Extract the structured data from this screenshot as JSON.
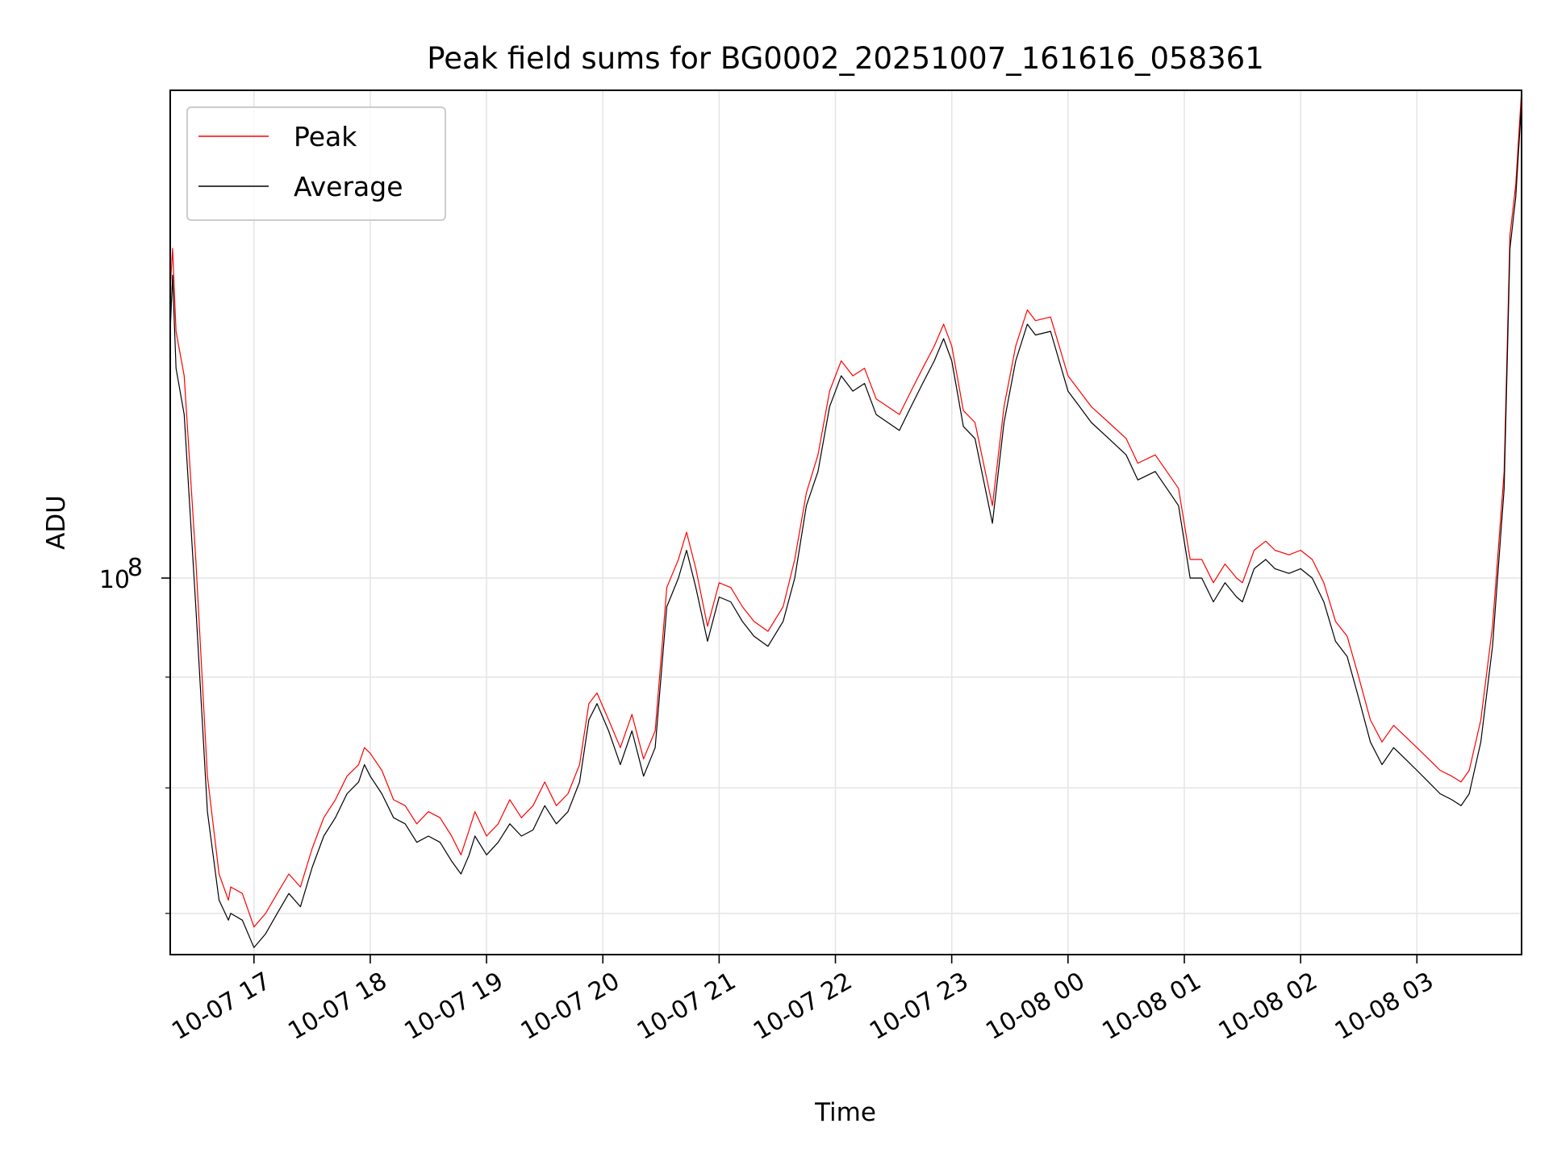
{
  "chart_data": {
    "type": "line",
    "title": "Peak field sums for BG0002_20251007_161616_058361",
    "xlabel": "Time",
    "ylabel": "ADU",
    "yscale": "log",
    "grid": true,
    "legend_position": "top-left",
    "x_unit": "hours since 10-07 16:00",
    "xlim": [
      16.28,
      27.9
    ],
    "ylim": [
      67000000.0,
      168000000.0
    ],
    "x_ticks": [
      {
        "value": 17,
        "label": "10-07 17"
      },
      {
        "value": 18,
        "label": "10-07 18"
      },
      {
        "value": 19,
        "label": "10-07 19"
      },
      {
        "value": 20,
        "label": "10-07 20"
      },
      {
        "value": 21,
        "label": "10-07 21"
      },
      {
        "value": 22,
        "label": "10-07 22"
      },
      {
        "value": 23,
        "label": "10-07 23"
      },
      {
        "value": 24,
        "label": "10-08 00"
      },
      {
        "value": 25,
        "label": "10-08 01"
      },
      {
        "value": 26,
        "label": "10-08 02"
      },
      {
        "value": 27,
        "label": "10-08 03"
      }
    ],
    "y_major_ticks": [
      {
        "value": 100000000,
        "base": "10",
        "exp": "8"
      }
    ],
    "y_minor_ticks": [
      70000000,
      80000000,
      90000000
    ],
    "series": [
      {
        "name": "Peak",
        "color": "#ff0000",
        "stroke_width": 1.2,
        "points": [
          [
            16.28,
            136000000.0
          ],
          [
            16.3,
            142000000.0
          ],
          [
            16.33,
            130000000.0
          ],
          [
            16.4,
            124000000.0
          ],
          [
            16.5,
            102000000.0
          ],
          [
            16.6,
            81000000.0
          ],
          [
            16.7,
            73000000.0
          ],
          [
            16.78,
            71000000.0
          ],
          [
            16.8,
            72000000.0
          ],
          [
            16.9,
            71500000.0
          ],
          [
            17.0,
            69000000.0
          ],
          [
            17.1,
            70000000.0
          ],
          [
            17.2,
            71500000.0
          ],
          [
            17.3,
            73000000.0
          ],
          [
            17.4,
            72000000.0
          ],
          [
            17.5,
            75000000.0
          ],
          [
            17.6,
            77500000.0
          ],
          [
            17.7,
            79000000.0
          ],
          [
            17.8,
            81000000.0
          ],
          [
            17.9,
            82000000.0
          ],
          [
            17.95,
            83500000.0
          ],
          [
            18.0,
            83000000.0
          ],
          [
            18.1,
            81500000.0
          ],
          [
            18.2,
            79000000.0
          ],
          [
            18.3,
            78500000.0
          ],
          [
            18.4,
            77000000.0
          ],
          [
            18.5,
            78000000.0
          ],
          [
            18.6,
            77500000.0
          ],
          [
            18.7,
            76000000.0
          ],
          [
            18.78,
            74500000.0
          ],
          [
            18.85,
            76500000.0
          ],
          [
            18.9,
            78000000.0
          ],
          [
            19.0,
            76000000.0
          ],
          [
            19.1,
            77000000.0
          ],
          [
            19.2,
            79000000.0
          ],
          [
            19.3,
            77500000.0
          ],
          [
            19.4,
            78500000.0
          ],
          [
            19.5,
            80500000.0
          ],
          [
            19.6,
            78500000.0
          ],
          [
            19.7,
            79500000.0
          ],
          [
            19.8,
            82000000.0
          ],
          [
            19.88,
            87500000.0
          ],
          [
            19.95,
            88500000.0
          ],
          [
            20.05,
            86000000.0
          ],
          [
            20.15,
            83500000.0
          ],
          [
            20.25,
            86500000.0
          ],
          [
            20.35,
            82500000.0
          ],
          [
            20.45,
            85000000.0
          ],
          [
            20.55,
            99000000.0
          ],
          [
            20.65,
            102000000.0
          ],
          [
            20.72,
            105000000.0
          ],
          [
            20.8,
            101000000.0
          ],
          [
            20.9,
            95000000.0
          ],
          [
            21.0,
            99500000.0
          ],
          [
            21.1,
            99000000.0
          ],
          [
            21.2,
            97000000.0
          ],
          [
            21.3,
            95500000.0
          ],
          [
            21.42,
            94500000.0
          ],
          [
            21.55,
            97000000.0
          ],
          [
            21.65,
            102000000.0
          ],
          [
            21.75,
            109500000.0
          ],
          [
            21.85,
            114000000.0
          ],
          [
            21.95,
            122000000.0
          ],
          [
            22.05,
            126000000.0
          ],
          [
            22.15,
            124000000.0
          ],
          [
            22.25,
            125000000.0
          ],
          [
            22.35,
            121000000.0
          ],
          [
            22.45,
            120000000.0
          ],
          [
            22.55,
            119000000.0
          ],
          [
            22.65,
            122000000.0
          ],
          [
            22.75,
            125000000.0
          ],
          [
            22.85,
            128000000.0
          ],
          [
            22.93,
            131000000.0
          ],
          [
            23.0,
            128000000.0
          ],
          [
            23.1,
            119500000.0
          ],
          [
            23.2,
            118000000.0
          ],
          [
            23.35,
            108000000.0
          ],
          [
            23.45,
            120000000.0
          ],
          [
            23.55,
            128000000.0
          ],
          [
            23.65,
            133000000.0
          ],
          [
            23.72,
            131500000.0
          ],
          [
            23.85,
            132000000.0
          ],
          [
            24.0,
            124000000.0
          ],
          [
            24.1,
            122000000.0
          ],
          [
            24.2,
            120000000.0
          ],
          [
            24.35,
            118000000.0
          ],
          [
            24.5,
            116000000.0
          ],
          [
            24.6,
            113000000.0
          ],
          [
            24.75,
            114000000.0
          ],
          [
            24.85,
            112000000.0
          ],
          [
            24.95,
            110000000.0
          ],
          [
            25.05,
            102000000.0
          ],
          [
            25.15,
            102000000.0
          ],
          [
            25.25,
            99500000.0
          ],
          [
            25.35,
            101500000.0
          ],
          [
            25.45,
            100000000.0
          ],
          [
            25.5,
            99500000.0
          ],
          [
            25.6,
            103000000.0
          ],
          [
            25.7,
            104000000.0
          ],
          [
            25.78,
            103000000.0
          ],
          [
            25.9,
            102500000.0
          ],
          [
            26.0,
            103000000.0
          ],
          [
            26.1,
            102000000.0
          ],
          [
            26.2,
            99500000.0
          ],
          [
            26.3,
            95500000.0
          ],
          [
            26.4,
            94000000.0
          ],
          [
            26.5,
            90000000.0
          ],
          [
            26.6,
            86000000.0
          ],
          [
            26.7,
            84000000.0
          ],
          [
            26.8,
            85500000.0
          ],
          [
            26.9,
            84500000.0
          ],
          [
            27.0,
            83500000.0
          ],
          [
            27.1,
            82500000.0
          ],
          [
            27.2,
            81500000.0
          ],
          [
            27.3,
            81000000.0
          ],
          [
            27.38,
            80500000.0
          ],
          [
            27.45,
            81500000.0
          ],
          [
            27.55,
            86000000.0
          ],
          [
            27.65,
            95000000.0
          ],
          [
            27.75,
            112000000.0
          ],
          [
            27.8,
            144000000.0
          ],
          [
            27.85,
            152000000.0
          ],
          [
            27.9,
            168000000.0
          ]
        ]
      },
      {
        "name": "Average",
        "color": "#000000",
        "stroke_width": 1.2,
        "points": [
          [
            16.28,
            130000000.0
          ],
          [
            16.3,
            138000000.0
          ],
          [
            16.33,
            125000000.0
          ],
          [
            16.4,
            119000000.0
          ],
          [
            16.5,
            97000000.0
          ],
          [
            16.6,
            78000000.0
          ],
          [
            16.7,
            71000000.0
          ],
          [
            16.78,
            69500000.0
          ],
          [
            16.8,
            70000000.0
          ],
          [
            16.9,
            69500000.0
          ],
          [
            17.0,
            67500000.0
          ],
          [
            17.1,
            68500000.0
          ],
          [
            17.2,
            70000000.0
          ],
          [
            17.3,
            71500000.0
          ],
          [
            17.4,
            70500000.0
          ],
          [
            17.5,
            73500000.0
          ],
          [
            17.6,
            76000000.0
          ],
          [
            17.7,
            77500000.0
          ],
          [
            17.8,
            79500000.0
          ],
          [
            17.9,
            80500000.0
          ],
          [
            17.95,
            82000000.0
          ],
          [
            18.0,
            81000000.0
          ],
          [
            18.1,
            79500000.0
          ],
          [
            18.2,
            77500000.0
          ],
          [
            18.3,
            77000000.0
          ],
          [
            18.4,
            75500000.0
          ],
          [
            18.5,
            76000000.0
          ],
          [
            18.6,
            75500000.0
          ],
          [
            18.7,
            74000000.0
          ],
          [
            18.78,
            73000000.0
          ],
          [
            18.85,
            74500000.0
          ],
          [
            18.9,
            76000000.0
          ],
          [
            19.0,
            74500000.0
          ],
          [
            19.1,
            75500000.0
          ],
          [
            19.2,
            77000000.0
          ],
          [
            19.3,
            76000000.0
          ],
          [
            19.4,
            76500000.0
          ],
          [
            19.5,
            78500000.0
          ],
          [
            19.6,
            77000000.0
          ],
          [
            19.7,
            78000000.0
          ],
          [
            19.8,
            80500000.0
          ],
          [
            19.88,
            86000000.0
          ],
          [
            19.95,
            87500000.0
          ],
          [
            20.05,
            85000000.0
          ],
          [
            20.15,
            82000000.0
          ],
          [
            20.25,
            85000000.0
          ],
          [
            20.35,
            81000000.0
          ],
          [
            20.45,
            83500000.0
          ],
          [
            20.55,
            97000000.0
          ],
          [
            20.65,
            100000000.0
          ],
          [
            20.72,
            103000000.0
          ],
          [
            20.8,
            99000000.0
          ],
          [
            20.9,
            93500000.0
          ],
          [
            21.0,
            98000000.0
          ],
          [
            21.1,
            97500000.0
          ],
          [
            21.2,
            95500000.0
          ],
          [
            21.3,
            94000000.0
          ],
          [
            21.42,
            93000000.0
          ],
          [
            21.55,
            95500000.0
          ],
          [
            21.65,
            100000000.0
          ],
          [
            21.75,
            108000000.0
          ],
          [
            21.85,
            112000000.0
          ],
          [
            21.95,
            120000000.0
          ],
          [
            22.05,
            124000000.0
          ],
          [
            22.15,
            122000000.0
          ],
          [
            22.25,
            123000000.0
          ],
          [
            22.35,
            119000000.0
          ],
          [
            22.45,
            118000000.0
          ],
          [
            22.55,
            117000000.0
          ],
          [
            22.65,
            120000000.0
          ],
          [
            22.75,
            123000000.0
          ],
          [
            22.85,
            126000000.0
          ],
          [
            22.93,
            129000000.0
          ],
          [
            23.0,
            126000000.0
          ],
          [
            23.1,
            117500000.0
          ],
          [
            23.2,
            116000000.0
          ],
          [
            23.35,
            106000000.0
          ],
          [
            23.45,
            118000000.0
          ],
          [
            23.55,
            126000000.0
          ],
          [
            23.65,
            131000000.0
          ],
          [
            23.72,
            129500000.0
          ],
          [
            23.85,
            130000000.0
          ],
          [
            24.0,
            122000000.0
          ],
          [
            24.1,
            120000000.0
          ],
          [
            24.2,
            118000000.0
          ],
          [
            24.35,
            116000000.0
          ],
          [
            24.5,
            114000000.0
          ],
          [
            24.6,
            111000000.0
          ],
          [
            24.75,
            112000000.0
          ],
          [
            24.85,
            110000000.0
          ],
          [
            24.95,
            108000000.0
          ],
          [
            25.05,
            100000000.0
          ],
          [
            25.15,
            100000000.0
          ],
          [
            25.25,
            97500000.0
          ],
          [
            25.35,
            99500000.0
          ],
          [
            25.45,
            98000000.0
          ],
          [
            25.5,
            97500000.0
          ],
          [
            25.6,
            101000000.0
          ],
          [
            25.7,
            102000000.0
          ],
          [
            25.78,
            101000000.0
          ],
          [
            25.9,
            100500000.0
          ],
          [
            26.0,
            101000000.0
          ],
          [
            26.1,
            100000000.0
          ],
          [
            26.2,
            97500000.0
          ],
          [
            26.3,
            93500000.0
          ],
          [
            26.4,
            92000000.0
          ],
          [
            26.5,
            88000000.0
          ],
          [
            26.6,
            84000000.0
          ],
          [
            26.7,
            82000000.0
          ],
          [
            26.8,
            83500000.0
          ],
          [
            26.9,
            82500000.0
          ],
          [
            27.0,
            81500000.0
          ],
          [
            27.1,
            80500000.0
          ],
          [
            27.2,
            79500000.0
          ],
          [
            27.3,
            79000000.0
          ],
          [
            27.38,
            78500000.0
          ],
          [
            27.45,
            79500000.0
          ],
          [
            27.55,
            84000000.0
          ],
          [
            27.65,
            93000000.0
          ],
          [
            27.75,
            110000000.0
          ],
          [
            27.8,
            142000000.0
          ],
          [
            27.85,
            150000000.0
          ],
          [
            27.9,
            166000000.0
          ]
        ]
      }
    ]
  }
}
